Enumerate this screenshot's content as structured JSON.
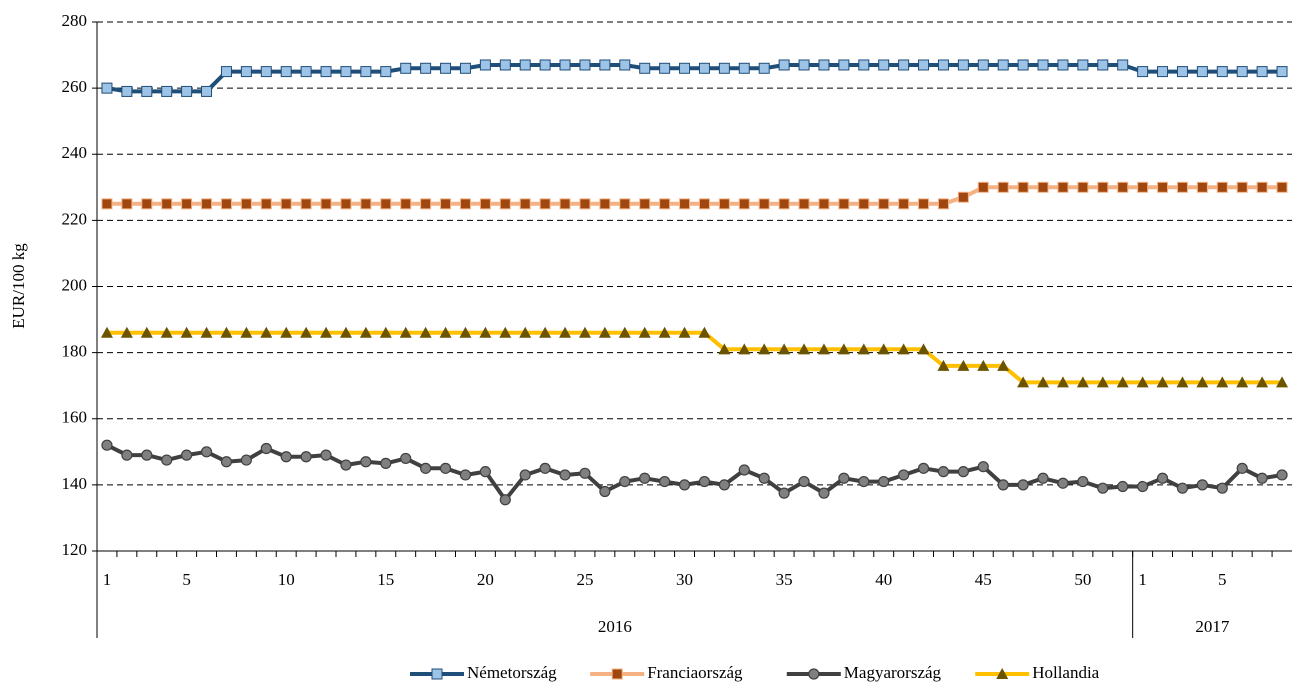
{
  "chart_data": {
    "type": "line",
    "y_label": "EUR/100 kg",
    "ylim": [
      120,
      280
    ],
    "yticks": [
      120,
      140,
      160,
      180,
      200,
      220,
      240,
      260,
      280
    ],
    "grid": true,
    "legend": "bottom",
    "categories": [
      "1",
      null,
      null,
      null,
      "5",
      null,
      null,
      null,
      null,
      "10",
      null,
      null,
      null,
      null,
      "15",
      null,
      null,
      null,
      null,
      "20",
      null,
      null,
      null,
      null,
      "25",
      null,
      null,
      null,
      null,
      "30",
      null,
      null,
      null,
      null,
      "35",
      null,
      null,
      null,
      null,
      "40",
      null,
      null,
      null,
      null,
      "45",
      null,
      null,
      null,
      null,
      "50",
      null,
      null,
      "1",
      null,
      null,
      null,
      "5",
      null,
      null,
      null
    ],
    "x_groups": [
      {
        "label": "2016",
        "count": 52
      },
      {
        "label": "2017",
        "count": 8
      }
    ],
    "series": [
      {
        "name": "Németország",
        "color": "#1f4e79",
        "marker": "square",
        "marker_color": "#9dc3e6",
        "values": [
          260,
          259,
          259,
          259,
          259,
          259,
          265,
          265,
          265,
          265,
          265,
          265,
          265,
          265,
          265,
          266,
          266,
          266,
          266,
          267,
          267,
          267,
          267,
          267,
          267,
          267,
          267,
          266,
          266,
          266,
          266,
          266,
          266,
          266,
          267,
          267,
          267,
          267,
          267,
          267,
          267,
          267,
          267,
          267,
          267,
          267,
          267,
          267,
          267,
          267,
          267,
          267,
          265,
          265,
          265,
          265,
          265,
          265,
          265,
          265
        ]
      },
      {
        "name": "Franciaország",
        "color": "#f4b183",
        "marker": "square",
        "marker_color": "#a0470f",
        "values": [
          225,
          225,
          225,
          225,
          225,
          225,
          225,
          225,
          225,
          225,
          225,
          225,
          225,
          225,
          225,
          225,
          225,
          225,
          225,
          225,
          225,
          225,
          225,
          225,
          225,
          225,
          225,
          225,
          225,
          225,
          225,
          225,
          225,
          225,
          225,
          225,
          225,
          225,
          225,
          225,
          225,
          225,
          225,
          227,
          230,
          230,
          230,
          230,
          230,
          230,
          230,
          230,
          230,
          230,
          230,
          230,
          230,
          230,
          230,
          230
        ]
      },
      {
        "name": "Magyarország",
        "color": "#404040",
        "marker": "circle",
        "marker_color": "#808080",
        "values": [
          152,
          149,
          149,
          147.5,
          149,
          150,
          147,
          147.5,
          151,
          148.5,
          148.5,
          149,
          146,
          147,
          146.5,
          148,
          145,
          145,
          143,
          144,
          135.5,
          143,
          145,
          143,
          143.5,
          138,
          141,
          142,
          141,
          140,
          141,
          140,
          144.5,
          142,
          137.5,
          141,
          137.5,
          142,
          141,
          141,
          143,
          145,
          144,
          144,
          145.5,
          140,
          140,
          142,
          140.5,
          141,
          139,
          139.5,
          139.5,
          142,
          139,
          140,
          139,
          145,
          142,
          143
        ]
      },
      {
        "name": "Hollandia",
        "color": "#ffc000",
        "marker": "triangle",
        "marker_color": "#6b5300",
        "values": [
          186,
          186,
          186,
          186,
          186,
          186,
          186,
          186,
          186,
          186,
          186,
          186,
          186,
          186,
          186,
          186,
          186,
          186,
          186,
          186,
          186,
          186,
          186,
          186,
          186,
          186,
          186,
          186,
          186,
          186,
          186,
          181,
          181,
          181,
          181,
          181,
          181,
          181,
          181,
          181,
          181,
          181,
          176,
          176,
          176,
          176,
          171,
          171,
          171,
          171,
          171,
          171,
          171,
          171,
          171,
          171,
          171,
          171,
          171,
          171
        ]
      }
    ]
  }
}
